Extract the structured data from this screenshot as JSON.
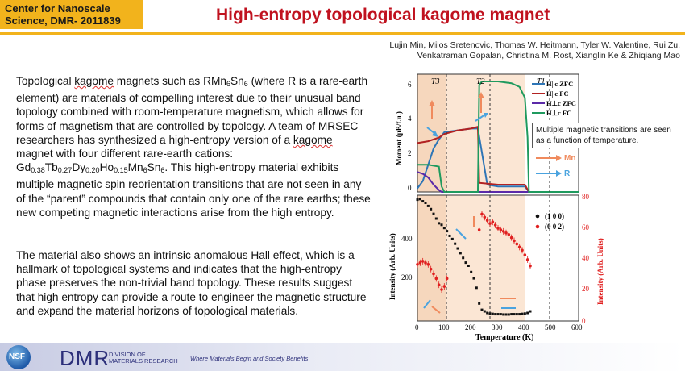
{
  "header": {
    "center_line1": "Center for Nanoscale",
    "center_line2": "Science, DMR- 2011839",
    "title": "High-entropy topological kagome magnet"
  },
  "authors": {
    "line1": "Lujin Min, Milos Sretenovic, Thomas W. Heitmann, Tyler W. Valentine, Rui Zu,",
    "line2": "Venkatraman Gopalan, Christina M. Rost, Xianglin Ke & Zhiqiang Mao"
  },
  "body": {
    "p1_a": "Topological ",
    "kagome": "kagome",
    "p1_b": " magnets such as RMn",
    "sub6": "6",
    "sn": "Sn",
    "p1_c": " (where R is a rare-earth element) are materials of compelling interest due to their unusual band topology combined with room-temperature magnetism, which allows for forms of magnetism that are controlled by topology. A team of MRSEC researchers has synthesized a high-entropy version of a ",
    "p1_d": " magnet with four different rare-earth cations: Gd",
    "gd_sub": "0.38",
    "tb": "Tb",
    "tb_sub": "0.27",
    "dy": "Dy",
    "dy_sub": "0.20",
    "ho": "Ho",
    "ho_sub": "0.15",
    "mn": "Mn",
    "p1_e": ". This high-entropy material exhibits multiple magnetic spin reorientation transitions that are not seen in any of the “parent” compounds that contain only one of the rare earths; these new competing magnetic interactions arise from the high entropy.",
    "p2": "The material also shows an intrinsic anomalous Hall effect, which is a hallmark of topological systems and indicates that the high-entropy phase preserves the non-trivial band topology. These results suggest that high entropy can provide a route to engineer the magnetic structure and expand the material horizons of topological materials."
  },
  "callout": "Multiple magnetic transitions are seen as a function of temperature.",
  "footer": {
    "nsf": "NSF",
    "dmr": "DMR",
    "dmr_sub1": "DIVISION OF",
    "dmr_sub2": "MATERIALS RESEARCH",
    "slogan": "Where Materials Begin and Society Benefits"
  },
  "figure": {
    "t_labels": [
      "T3",
      "T2",
      "T1"
    ],
    "top_ylabel": "Moment (μB/f.u.)",
    "top_yticks": [
      "0",
      "2",
      "4",
      "6"
    ],
    "legend": [
      "H||c ZFC",
      "H||c FC",
      "H⊥c ZFC",
      "H⊥c FC"
    ],
    "arrow_labels": [
      "Mn",
      "R"
    ],
    "bottom_ylabel_left": "Intensity (Arb. Units)",
    "bottom_ylabel_right": "Intensity (Arb. Units)",
    "bottom_yticks_left": [
      "200",
      "400"
    ],
    "bottom_yticks_right": [
      "0",
      "20",
      "40",
      "60",
      "80"
    ],
    "xlabel": "Temperature (K)",
    "xticks": [
      "0",
      "100",
      "200",
      "300",
      "400",
      "500",
      "600"
    ],
    "bottom_legend": [
      "(1 0 0)",
      "(0 0 2)"
    ]
  },
  "colors": {
    "title_red": "#c0121f",
    "gold": "#f2b31c",
    "zfc_par": "#2e75b6",
    "fc_par": "#b22222",
    "zfc_perp": "#5b2aa8",
    "fc_perp": "#1f9a5e",
    "peach": "#f6d7bd"
  },
  "chart_data": [
    {
      "type": "line",
      "title": "",
      "xlabel": "",
      "ylabel": "Moment (μB/f.u.)",
      "xlim": [
        0,
        600
      ],
      "ylim": [
        0,
        6.5
      ],
      "transitions": {
        "T3": 90,
        "T2": 225,
        "T1": 410
      },
      "series": [
        {
          "name": "H||c ZFC",
          "x": [
            0,
            20,
            40,
            60,
            80,
            90,
            100,
            150,
            200,
            225,
            260,
            300,
            400,
            415,
            600
          ],
          "y": [
            0.2,
            0.6,
            1.5,
            2.4,
            2.9,
            3.1,
            3.3,
            3.4,
            3.5,
            3.5,
            0.4,
            0.3,
            0.3,
            0.0,
            0.0
          ]
        },
        {
          "name": "H||c FC",
          "x": [
            0,
            40,
            80,
            90,
            100,
            150,
            200,
            225,
            230,
            300,
            400,
            415,
            600
          ],
          "y": [
            2.7,
            2.8,
            3.0,
            3.1,
            3.2,
            3.4,
            3.5,
            3.6,
            0.5,
            0.4,
            0.4,
            0.0,
            0.0
          ]
        },
        {
          "name": "H⊥c ZFC",
          "x": [
            0,
            20,
            40,
            60,
            80,
            90,
            100,
            600
          ],
          "y": [
            1.1,
            1.0,
            0.8,
            0.4,
            0.1,
            0.0,
            0.0,
            0.0
          ]
        },
        {
          "name": "H⊥c FC",
          "x": [
            0,
            40,
            80,
            90,
            100,
            150,
            200,
            225,
            230,
            240,
            300,
            350,
            380,
            400,
            410,
            415,
            600
          ],
          "y": [
            1.5,
            1.5,
            1.4,
            0.3,
            0.0,
            0.0,
            0.0,
            0.0,
            5.9,
            6.1,
            6.1,
            6.0,
            5.8,
            5.2,
            3.0,
            0.0,
            0.0
          ]
        }
      ]
    },
    {
      "type": "scatter",
      "title": "",
      "xlabel": "Temperature (K)",
      "ylabel": "Intensity (Arb. Units)",
      "xlim": [
        0,
        600
      ],
      "ylim_left": [
        100,
        500
      ],
      "ylim_right": [
        0,
        80
      ],
      "series": [
        {
          "name": "(1 0 0)",
          "axis": "left",
          "x": [
            0,
            10,
            20,
            30,
            40,
            50,
            60,
            70,
            80,
            90,
            100,
            110,
            120,
            130,
            140,
            150,
            160,
            170,
            180,
            190,
            200,
            210,
            220,
            230,
            240,
            250,
            260,
            270,
            280,
            290,
            300,
            310,
            320,
            330,
            340,
            350,
            360,
            370,
            380,
            390,
            400,
            410,
            420
          ],
          "y": [
            460,
            462,
            455,
            450,
            440,
            430,
            415,
            400,
            385,
            380,
            370,
            360,
            345,
            335,
            320,
            305,
            290,
            275,
            260,
            250,
            230,
            210,
            180,
            130,
            110,
            105,
            100,
            98,
            97,
            96,
            96,
            96,
            95,
            95,
            95,
            96,
            96,
            96,
            96,
            97,
            98,
            100,
            105
          ]
        },
        {
          "name": "(0 0 2)",
          "axis": "right",
          "x": [
            0,
            10,
            20,
            30,
            40,
            50,
            60,
            70,
            80,
            90,
            100,
            110,
            230,
            240,
            250,
            260,
            270,
            280,
            290,
            300,
            310,
            320,
            330,
            340,
            350,
            360,
            370,
            380,
            390,
            400,
            410,
            420
          ],
          "y": [
            36,
            37,
            38,
            37,
            36,
            33,
            30,
            27,
            23,
            20,
            22,
            27,
            58,
            68,
            66,
            64,
            62,
            63,
            61,
            59,
            58,
            57,
            56,
            55,
            53,
            51,
            49,
            47,
            45,
            42,
            39,
            35
          ]
        }
      ]
    }
  ]
}
